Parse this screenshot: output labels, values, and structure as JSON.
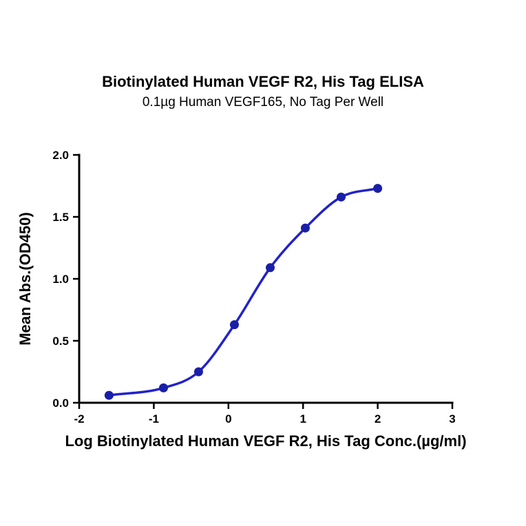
{
  "page": {
    "background": "#ffffff"
  },
  "chart_data": {
    "type": "scatter",
    "title": "Biotinylated Human VEGF R2, His Tag ELISA",
    "subtitle": "0.1µg Human VEGF165, No Tag Per Well",
    "xlabel": "Log Biotinylated Human VEGF R2, His Tag Conc.(µg/ml)",
    "ylabel": "Mean Abs.(OD450)",
    "xlim": [
      -2,
      3
    ],
    "ylim": [
      0,
      2
    ],
    "xticks": [
      -2,
      -1,
      0,
      1,
      2,
      3
    ],
    "yticks": [
      0,
      0.5,
      1,
      1.5,
      2
    ],
    "grid": false,
    "legend": "none",
    "series": [
      {
        "name": "Biotinylated Human VEGF R2, His Tag",
        "fit": "sigmoidal-4pl",
        "points": [
          {
            "x": -1.6,
            "y": 0.06
          },
          {
            "x": -0.87,
            "y": 0.12
          },
          {
            "x": -0.4,
            "y": 0.25
          },
          {
            "x": 0.08,
            "y": 0.63
          },
          {
            "x": 0.56,
            "y": 1.09
          },
          {
            "x": 1.03,
            "y": 1.41
          },
          {
            "x": 1.51,
            "y": 1.66
          },
          {
            "x": 2.0,
            "y": 1.73
          }
        ]
      }
    ],
    "colors": {
      "line": "#2222cc",
      "marker": "#1a1fa8",
      "axis": "#000000",
      "text": "#000000"
    }
  }
}
